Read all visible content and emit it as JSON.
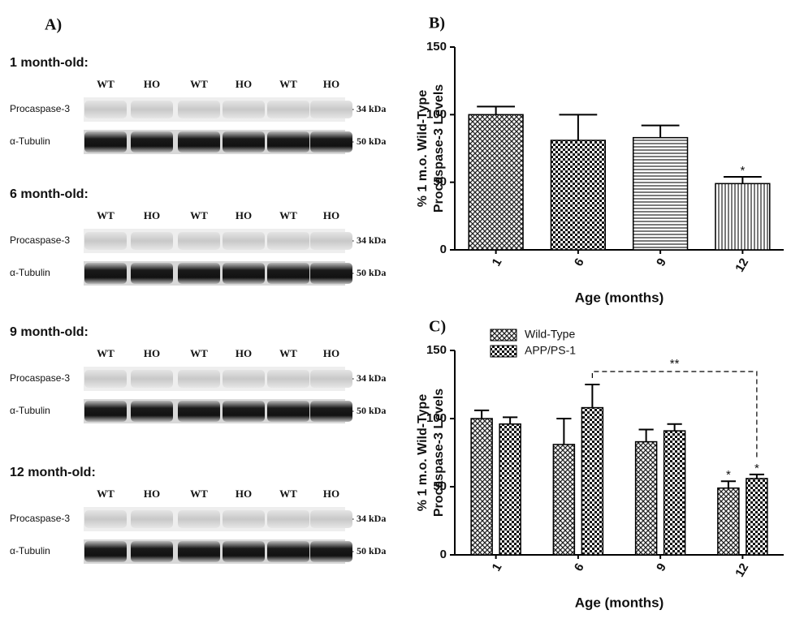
{
  "blot_panel": {
    "label": "A)",
    "sections": [
      {
        "title": "1 month-old:",
        "lanes": [
          "WT",
          "HO",
          "WT",
          "HO",
          "WT",
          "HO"
        ],
        "rows": [
          {
            "name": "Procaspase-3",
            "marker": "-- 34 kDa"
          },
          {
            "name": "α-Tubulin",
            "marker": "-- 50 kDa"
          }
        ]
      },
      {
        "title": "6 month-old:",
        "lanes": [
          "WT",
          "HO",
          "WT",
          "HO",
          "WT",
          "HO"
        ],
        "rows": [
          {
            "name": "Procaspase-3",
            "marker": "-- 34 kDa"
          },
          {
            "name": "α-Tubulin",
            "marker": "-- 50 kDa"
          }
        ]
      },
      {
        "title": "9 month-old:",
        "lanes": [
          "WT",
          "HO",
          "WT",
          "HO",
          "WT",
          "HO"
        ],
        "rows": [
          {
            "name": "Procaspase-3",
            "marker": "-- 34 kDa"
          },
          {
            "name": "α-Tubulin",
            "marker": "-- 50 kDa"
          }
        ]
      },
      {
        "title": "12 month-old:",
        "lanes": [
          "WT",
          "HO",
          "WT",
          "HO",
          "WT",
          "HO"
        ],
        "rows": [
          {
            "name": "Procaspase-3",
            "marker": "-- 34 kDa"
          },
          {
            "name": "α-Tubulin",
            "marker": "-- 50 kDa"
          }
        ]
      }
    ]
  },
  "chart_data": [
    {
      "type": "bar",
      "panel_label": "B)",
      "ylabel": [
        "% 1 m.o. Wild-Type",
        "Procaspase-3 Levels"
      ],
      "xlabel": "Age  (months)",
      "categories": [
        "1",
        "6",
        "9",
        "12"
      ],
      "values": [
        100,
        81,
        83,
        49
      ],
      "errors": [
        6,
        19,
        9,
        5
      ],
      "patterns": [
        "crosshatch",
        "checker",
        "hlines",
        "vlines"
      ],
      "significance": [
        null,
        null,
        null,
        "*"
      ],
      "ylim": [
        0,
        150
      ],
      "yticks": [
        0,
        50,
        100,
        150
      ]
    },
    {
      "type": "grouped-bar",
      "panel_label": "C)",
      "ylabel": [
        "% 1 m.o. Wild-Type",
        "Procaspase-3 Levels"
      ],
      "xlabel": "Age  (months)",
      "categories": [
        "1",
        "6",
        "9",
        "12"
      ],
      "series": [
        {
          "name": "Wild-Type",
          "pattern": "crosshatch",
          "values": [
            100,
            81,
            83,
            49
          ],
          "errors": [
            6,
            19,
            9,
            5
          ],
          "significance": [
            null,
            null,
            null,
            "*"
          ]
        },
        {
          "name": "APP/PS-1",
          "pattern": "checker",
          "values": [
            96,
            108,
            91,
            56
          ],
          "errors": [
            5,
            17,
            5,
            3
          ],
          "significance": [
            null,
            null,
            null,
            "*"
          ]
        }
      ],
      "bracket_label": "**",
      "legend": "top-left",
      "ylim": [
        0,
        150
      ],
      "yticks": [
        0,
        50,
        100,
        150
      ]
    }
  ]
}
